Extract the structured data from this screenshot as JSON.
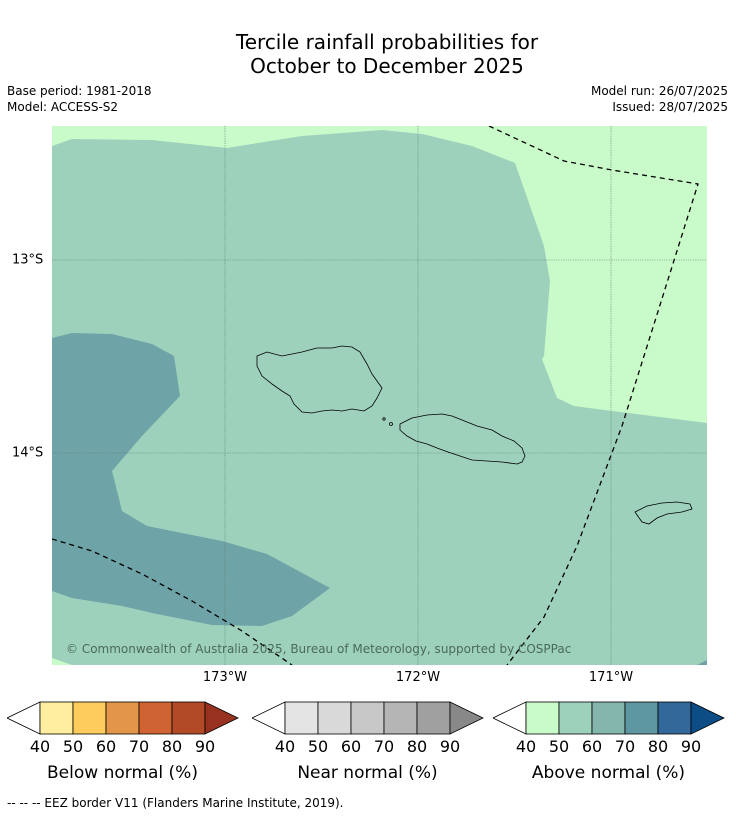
{
  "title_line1": "Tercile rainfall probabilities for",
  "title_line2": "October to December 2025",
  "base_period": "Base period: 1981-2018",
  "model": "Model: ACCESS-S2",
  "model_run": "Model run: 26/07/2025",
  "issued": "Issued: 28/07/2025",
  "map": {
    "lon_labels": [
      "173°W",
      "172°W",
      "171°W"
    ],
    "lat_labels": [
      "13°S",
      "14°S"
    ],
    "copyright": "© Commonwealth of Australia 2025, Bureau of Meteorology, supported by COSPPac",
    "colors": {
      "above_50": "#9ed1bc",
      "above_40": "#c9fbca",
      "above_60": "#6ea3a7",
      "grid": "#5a7a6a"
    }
  },
  "colorbars": [
    {
      "caption": "Below normal (%)",
      "ticks": [
        "40",
        "50",
        "60",
        "70",
        "80",
        "90"
      ],
      "colors": [
        "#ffeda0",
        "#fecc5c",
        "#e3954a",
        "#d06332",
        "#b24a28",
        "#96321f"
      ]
    },
    {
      "caption": "Near normal (%)",
      "ticks": [
        "40",
        "50",
        "60",
        "70",
        "80",
        "90"
      ],
      "colors": [
        "#e4e4e4",
        "#d9d9d9",
        "#c8c8c8",
        "#b5b5b5",
        "#a0a0a0",
        "#888888"
      ]
    },
    {
      "caption": "Above normal (%)",
      "ticks": [
        "40",
        "50",
        "60",
        "70",
        "80",
        "90"
      ],
      "colors": [
        "#c9fbca",
        "#9ed1bc",
        "#84b6ad",
        "#5e96a2",
        "#33699a",
        "#0c4d86"
      ]
    }
  ],
  "eez_note": "--  --  -- EEZ border V11 (Flanders Marine Institute, 2019)."
}
